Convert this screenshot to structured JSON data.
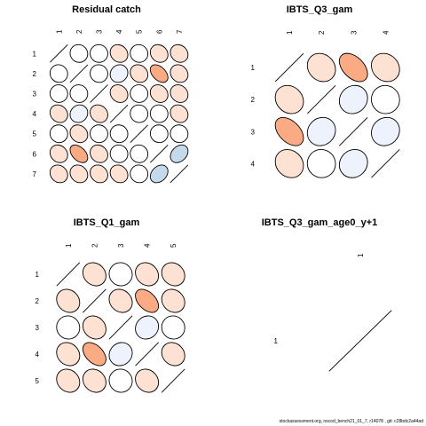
{
  "chart_data": [
    {
      "type": "heatmap",
      "title": "Residual catch",
      "labels": [
        "1",
        "2",
        "3",
        "4",
        "5",
        "6",
        "7"
      ],
      "matrix": [
        [
          1,
          0.05,
          0.02,
          0.15,
          0.04,
          0.15,
          0.15
        ],
        [
          0.05,
          1,
          0.03,
          -0.1,
          0.15,
          0.45,
          0.15
        ],
        [
          0.02,
          0.03,
          1,
          0.15,
          0.02,
          0.15,
          0.15
        ],
        [
          0.15,
          -0.1,
          0.15,
          1,
          0.03,
          0.03,
          0.15
        ],
        [
          0.04,
          0.15,
          0.02,
          0.03,
          1,
          0.03,
          0.03
        ],
        [
          0.15,
          0.45,
          0.15,
          0.03,
          0.03,
          1,
          -0.3
        ],
        [
          0.15,
          0.15,
          0.15,
          0.15,
          0.03,
          -0.3,
          1
        ]
      ]
    },
    {
      "type": "heatmap",
      "title": "IBTS_Q3_gam",
      "labels": [
        "1",
        "2",
        "3",
        "4"
      ],
      "matrix": [
        [
          1,
          0.15,
          0.45,
          0.15
        ],
        [
          0.15,
          1,
          -0.1,
          0.02
        ],
        [
          0.45,
          -0.1,
          1,
          -0.1
        ],
        [
          0.15,
          0.02,
          -0.1,
          1
        ]
      ]
    },
    {
      "type": "heatmap",
      "title": "IBTS_Q1_gam",
      "labels": [
        "1",
        "2",
        "3",
        "4",
        "5"
      ],
      "matrix": [
        [
          1,
          0.15,
          0.03,
          0.15,
          0.15
        ],
        [
          0.15,
          1,
          0.15,
          0.45,
          0.15
        ],
        [
          0.03,
          0.15,
          1,
          -0.1,
          0.03
        ],
        [
          0.15,
          0.45,
          -0.1,
          1,
          0.15
        ],
        [
          0.15,
          0.15,
          0.03,
          0.15,
          1
        ]
      ]
    },
    {
      "type": "heatmap",
      "title": "IBTS_Q3_gam_age0_y+1",
      "labels": [
        "1"
      ],
      "matrix": [
        [
          1
        ]
      ]
    }
  ],
  "colors": {
    "positive_strong": "#fbab84",
    "positive_light": "#fde1d3",
    "negative_light": "#eef2fd",
    "negative_mid": "#c4d9ea",
    "neutral": "#ffffff",
    "outline": "#000000"
  },
  "footer": "stockassessment.org,  nscod_bench21_01_7,  r14078 ,  git: c28bdc2a44ad"
}
